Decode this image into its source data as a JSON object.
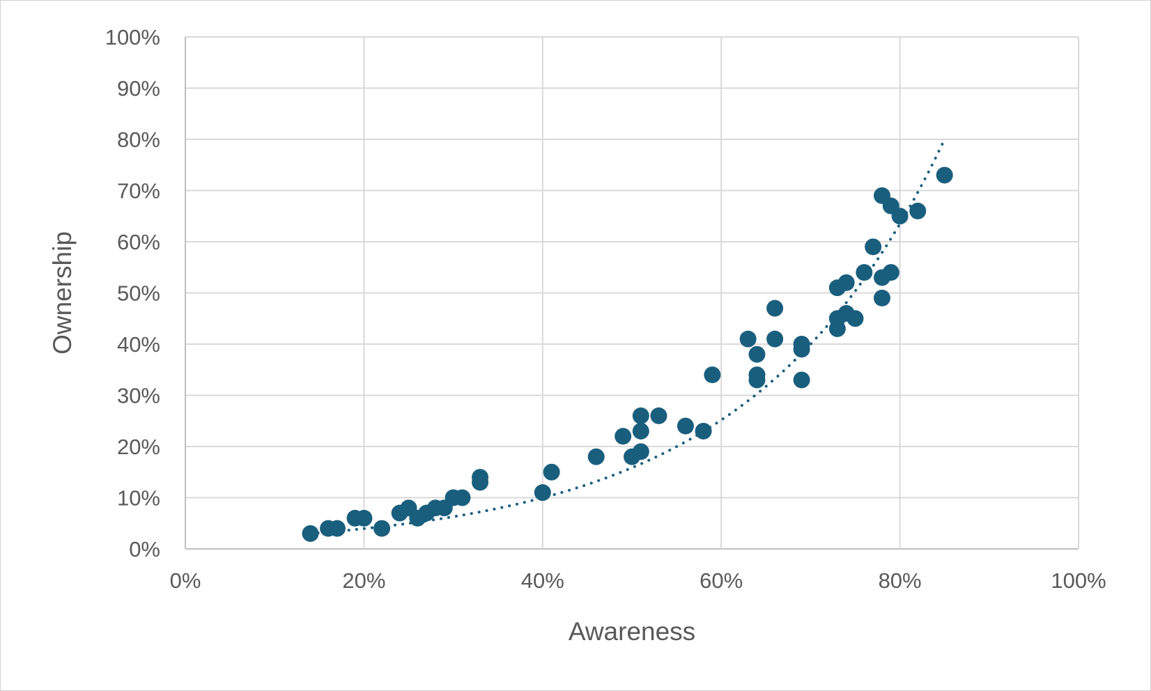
{
  "chart_data": {
    "type": "scatter",
    "xlabel": "Awareness",
    "ylabel": "Ownership",
    "xlim": [
      0,
      100
    ],
    "ylim": [
      0,
      100
    ],
    "x_ticks": [
      "0%",
      "20%",
      "40%",
      "60%",
      "80%",
      "100%"
    ],
    "y_ticks": [
      "0%",
      "10%",
      "20%",
      "30%",
      "40%",
      "50%",
      "60%",
      "70%",
      "80%",
      "90%",
      "100%"
    ],
    "grid": true,
    "legend": "none",
    "marker_color": "#1a5e7e",
    "trendline": {
      "style": "dotted",
      "kind": "exponential",
      "color": "#1a5e7e",
      "x_range": [
        14,
        85
      ],
      "y_range": [
        3,
        80
      ]
    },
    "series": [
      {
        "points": [
          [
            14,
            3
          ],
          [
            16,
            4
          ],
          [
            17,
            4
          ],
          [
            19,
            6
          ],
          [
            20,
            6
          ],
          [
            22,
            4
          ],
          [
            24,
            7
          ],
          [
            25,
            8
          ],
          [
            26,
            6
          ],
          [
            27,
            7
          ],
          [
            28,
            8
          ],
          [
            29,
            8
          ],
          [
            30,
            10
          ],
          [
            31,
            10
          ],
          [
            33,
            14
          ],
          [
            33,
            13
          ],
          [
            40,
            11
          ],
          [
            41,
            15
          ],
          [
            46,
            18
          ],
          [
            49,
            22
          ],
          [
            50,
            18
          ],
          [
            51,
            26
          ],
          [
            51,
            23
          ],
          [
            51,
            19
          ],
          [
            53,
            26
          ],
          [
            56,
            24
          ],
          [
            58,
            23
          ],
          [
            59,
            34
          ],
          [
            63,
            41
          ],
          [
            64,
            38
          ],
          [
            64,
            34
          ],
          [
            64,
            33
          ],
          [
            66,
            47
          ],
          [
            66,
            41
          ],
          [
            69,
            40
          ],
          [
            69,
            39
          ],
          [
            69,
            33
          ],
          [
            73,
            51
          ],
          [
            73,
            45
          ],
          [
            73,
            43
          ],
          [
            74,
            52
          ],
          [
            74,
            46
          ],
          [
            75,
            45
          ],
          [
            76,
            54
          ],
          [
            77,
            59
          ],
          [
            78,
            69
          ],
          [
            78,
            53
          ],
          [
            78,
            49
          ],
          [
            79,
            67
          ],
          [
            79,
            54
          ],
          [
            80,
            65
          ],
          [
            82,
            66
          ],
          [
            85,
            73
          ]
        ]
      }
    ]
  }
}
